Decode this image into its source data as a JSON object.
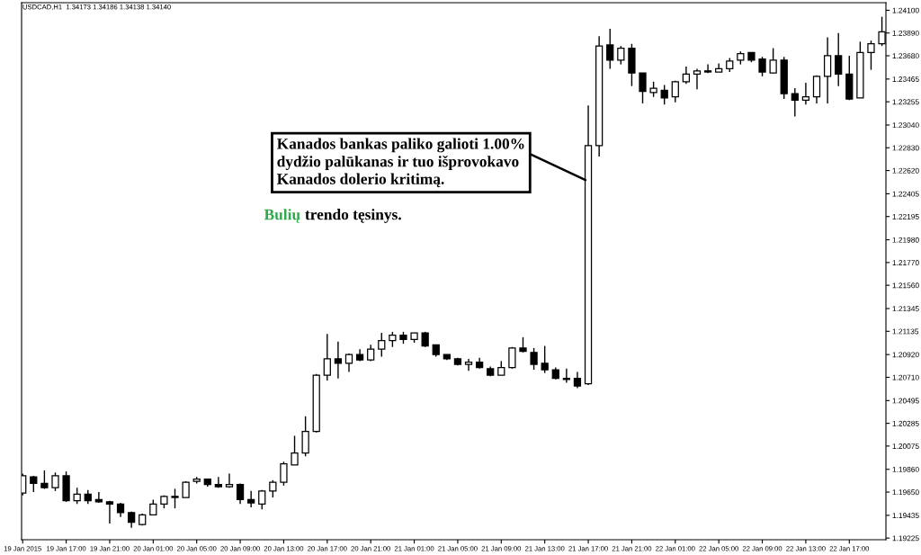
{
  "chart_data": {
    "type": "candlestick",
    "title": "USDCAD,H1  1.34173 1.34186 1.34138 1.34140",
    "color": "#000000",
    "x": [
      "2015-01-19T13:00",
      "2015-01-19T14:00",
      "2015-01-19T15:00",
      "2015-01-19T16:00",
      "2015-01-19T17:00",
      "2015-01-19T18:00",
      "2015-01-19T19:00",
      "2015-01-19T20:00",
      "2015-01-19T21:00",
      "2015-01-19T22:00",
      "2015-01-19T23:00",
      "2015-01-20T00:00",
      "2015-01-20T01:00",
      "2015-01-20T02:00",
      "2015-01-20T03:00",
      "2015-01-20T04:00",
      "2015-01-20T05:00",
      "2015-01-20T06:00",
      "2015-01-20T07:00",
      "2015-01-20T08:00",
      "2015-01-20T09:00",
      "2015-01-20T10:00",
      "2015-01-20T11:00",
      "2015-01-20T12:00",
      "2015-01-20T13:00",
      "2015-01-20T14:00",
      "2015-01-20T15:00",
      "2015-01-20T16:00",
      "2015-01-20T17:00",
      "2015-01-20T18:00",
      "2015-01-20T19:00",
      "2015-01-20T20:00",
      "2015-01-20T21:00",
      "2015-01-20T22:00",
      "2015-01-20T23:00",
      "2015-01-21T00:00",
      "2015-01-21T01:00",
      "2015-01-21T02:00",
      "2015-01-21T03:00",
      "2015-01-21T04:00",
      "2015-01-21T05:00",
      "2015-01-21T06:00",
      "2015-01-21T07:00",
      "2015-01-21T08:00",
      "2015-01-21T09:00",
      "2015-01-21T10:00",
      "2015-01-21T11:00",
      "2015-01-21T12:00",
      "2015-01-21T13:00",
      "2015-01-21T14:00",
      "2015-01-21T15:00",
      "2015-01-21T16:00",
      "2015-01-21T17:00",
      "2015-01-21T18:00",
      "2015-01-21T19:00",
      "2015-01-21T20:00",
      "2015-01-21T21:00",
      "2015-01-21T22:00",
      "2015-01-21T23:00",
      "2015-01-22T00:00",
      "2015-01-22T01:00",
      "2015-01-22T02:00",
      "2015-01-22T03:00",
      "2015-01-22T04:00",
      "2015-01-22T05:00",
      "2015-01-22T06:00",
      "2015-01-22T07:00",
      "2015-01-22T08:00",
      "2015-01-22T09:00",
      "2015-01-22T10:00",
      "2015-01-22T11:00",
      "2015-01-22T12:00",
      "2015-01-22T13:00",
      "2015-01-22T14:00",
      "2015-01-22T15:00",
      "2015-01-22T16:00",
      "2015-01-22T17:00",
      "2015-01-22T18:00",
      "2015-01-22T19:00",
      "2015-01-22T20:00"
    ],
    "ohlc": [
      [
        1.1964,
        1.1982,
        1.1962,
        1.198
      ],
      [
        1.1979,
        1.198,
        1.1965,
        1.1973
      ],
      [
        1.1973,
        1.1985,
        1.1968,
        1.1969
      ],
      [
        1.1969,
        1.1983,
        1.1966,
        1.198
      ],
      [
        1.198,
        1.1984,
        1.1956,
        1.1957
      ],
      [
        1.1957,
        1.1969,
        1.1954,
        1.1963
      ],
      [
        1.1963,
        1.1967,
        1.1954,
        1.1957
      ],
      [
        1.1958,
        1.1965,
        1.1955,
        1.1956
      ],
      [
        1.1956,
        1.1957,
        1.1936,
        1.1954
      ],
      [
        1.1954,
        1.1955,
        1.1942,
        1.1946
      ],
      [
        1.1946,
        1.1947,
        1.1932,
        1.1937
      ],
      [
        1.1935,
        1.1945,
        1.1934,
        1.1944
      ],
      [
        1.1944,
        1.1958,
        1.1944,
        1.1954
      ],
      [
        1.1954,
        1.1962,
        1.195,
        1.1961
      ],
      [
        1.1961,
        1.1968,
        1.195,
        1.196
      ],
      [
        1.196,
        1.1975,
        1.196,
        1.1974
      ],
      [
        1.1975,
        1.1979,
        1.1973,
        1.1977
      ],
      [
        1.1977,
        1.1977,
        1.197,
        1.1972
      ],
      [
        1.1972,
        1.1979,
        1.1969,
        1.197
      ],
      [
        1.197,
        1.1982,
        1.1969,
        1.1972
      ],
      [
        1.1972,
        1.1973,
        1.1954,
        1.1958
      ],
      [
        1.1958,
        1.1966,
        1.1951,
        1.1955
      ],
      [
        1.1954,
        1.1967,
        1.1949,
        1.1966
      ],
      [
        1.1966,
        1.1976,
        1.196,
        1.1974
      ],
      [
        1.1974,
        1.1993,
        1.1971,
        1.1991
      ],
      [
        1.199,
        1.2017,
        1.199,
        1.2001
      ],
      [
        1.2001,
        1.2035,
        1.1998,
        1.2021
      ],
      [
        1.2021,
        1.2074,
        1.202,
        1.2073
      ],
      [
        1.2073,
        1.2111,
        1.2068,
        1.2088
      ],
      [
        1.2088,
        1.2104,
        1.207,
        1.2084
      ],
      [
        1.2084,
        1.2093,
        1.2076,
        1.2092
      ],
      [
        1.2092,
        1.2097,
        1.2086,
        1.2087
      ],
      [
        1.2087,
        1.2101,
        1.2086,
        1.2097
      ],
      [
        1.2097,
        1.2112,
        1.209,
        1.2105
      ],
      [
        1.2105,
        1.2113,
        1.2099,
        1.211
      ],
      [
        1.211,
        1.2113,
        1.2102,
        1.2106
      ],
      [
        1.2106,
        1.2112,
        1.2103,
        1.2112
      ],
      [
        1.2112,
        1.2113,
        1.2099,
        1.21
      ],
      [
        1.2101,
        1.2101,
        1.209,
        1.2092
      ],
      [
        1.2092,
        1.2092,
        1.2087,
        1.2088
      ],
      [
        1.2088,
        1.2089,
        1.2082,
        1.2083
      ],
      [
        1.2083,
        1.2088,
        1.2077,
        1.2085
      ],
      [
        1.2085,
        1.2089,
        1.2079,
        1.208
      ],
      [
        1.2079,
        1.2081,
        1.2072,
        1.2073
      ],
      [
        1.2073,
        1.2086,
        1.2073,
        1.208
      ],
      [
        1.208,
        1.2099,
        1.2079,
        1.2098
      ],
      [
        1.2098,
        1.2108,
        1.2094,
        1.2095
      ],
      [
        1.2094,
        1.2098,
        1.2078,
        1.2083
      ],
      [
        1.2084,
        1.21,
        1.2075,
        1.2078
      ],
      [
        1.2078,
        1.208,
        1.2069,
        1.207
      ],
      [
        1.207,
        1.2079,
        1.2066,
        1.2069
      ],
      [
        1.207,
        1.2076,
        1.2061,
        1.2063
      ],
      [
        1.2065,
        1.2322,
        1.2064,
        1.2285
      ],
      [
        1.2285,
        1.2386,
        1.2275,
        1.2377
      ],
      [
        1.2378,
        1.2393,
        1.2356,
        1.2364
      ],
      [
        1.2364,
        1.2377,
        1.236,
        1.2375
      ],
      [
        1.2375,
        1.2379,
        1.234,
        1.2352
      ],
      [
        1.2352,
        1.2352,
        1.2324,
        1.2335
      ],
      [
        1.2334,
        1.2344,
        1.233,
        1.2338
      ],
      [
        1.2336,
        1.2341,
        1.2323,
        1.2329
      ],
      [
        1.233,
        1.2345,
        1.2325,
        1.2344
      ],
      [
        1.2344,
        1.2358,
        1.2342,
        1.2351
      ],
      [
        1.2351,
        1.2356,
        1.2337,
        1.2354
      ],
      [
        1.2354,
        1.236,
        1.2352,
        1.2353
      ],
      [
        1.2353,
        1.2361,
        1.2353,
        1.2356
      ],
      [
        1.2356,
        1.2366,
        1.2353,
        1.2363
      ],
      [
        1.2364,
        1.2372,
        1.236,
        1.237
      ],
      [
        1.2371,
        1.2371,
        1.2362,
        1.2364
      ],
      [
        1.2365,
        1.2367,
        1.2349,
        1.2353
      ],
      [
        1.2352,
        1.2375,
        1.2352,
        1.2364
      ],
      [
        1.2364,
        1.2367,
        1.2328,
        1.2333
      ],
      [
        1.2333,
        1.2338,
        1.2312,
        1.2327
      ],
      [
        1.2327,
        1.2343,
        1.2323,
        1.233
      ],
      [
        1.233,
        1.235,
        1.2324,
        1.2349
      ],
      [
        1.2349,
        1.2385,
        1.2324,
        1.2368
      ],
      [
        1.2368,
        1.2389,
        1.234,
        1.2351
      ],
      [
        1.2351,
        1.2368,
        1.2327,
        1.2328
      ],
      [
        1.2329,
        1.2381,
        1.2329,
        1.2371
      ],
      [
        1.2371,
        1.2382,
        1.2355,
        1.2379
      ],
      [
        1.2379,
        1.2404,
        1.2377,
        1.239
      ]
    ],
    "xlim": [
      "2015-01-19T12:54",
      "2015-01-22T20:22"
    ],
    "xticks": [
      {
        "value": "2015-01-19T13:00",
        "label": "19 Jan 2015"
      },
      {
        "value": "2015-01-19T17:00",
        "label": "19 Jan 17:00"
      },
      {
        "value": "2015-01-19T21:00",
        "label": "19 Jan 21:00"
      },
      {
        "value": "2015-01-20T01:00",
        "label": "20 Jan 01:00"
      },
      {
        "value": "2015-01-20T05:00",
        "label": "20 Jan 05:00"
      },
      {
        "value": "2015-01-20T09:00",
        "label": "20 Jan 09:00"
      },
      {
        "value": "2015-01-20T13:00",
        "label": "20 Jan 13:00"
      },
      {
        "value": "2015-01-20T17:00",
        "label": "20 Jan 17:00"
      },
      {
        "value": "2015-01-20T21:00",
        "label": "20 Jan 21:00"
      },
      {
        "value": "2015-01-21T01:00",
        "label": "21 Jan 01:00"
      },
      {
        "value": "2015-01-21T05:00",
        "label": "21 Jan 05:00"
      },
      {
        "value": "2015-01-21T09:00",
        "label": "21 Jan 09:00"
      },
      {
        "value": "2015-01-21T13:00",
        "label": "21 Jan 13:00"
      },
      {
        "value": "2015-01-21T17:00",
        "label": "21 Jan 17:00"
      },
      {
        "value": "2015-01-21T21:00",
        "label": "21 Jan 21:00"
      },
      {
        "value": "2015-01-22T01:00",
        "label": "22 Jan 01:00"
      },
      {
        "value": "2015-01-22T05:00",
        "label": "22 Jan 05:00"
      },
      {
        "value": "2015-01-22T09:00",
        "label": "22 Jan 09:00"
      },
      {
        "value": "2015-01-22T13:00",
        "label": "22 Jan 13:00"
      },
      {
        "value": "2015-01-22T17:00",
        "label": "22 Jan 17:00"
      }
    ],
    "ylim": [
      1.1921,
      1.2417
    ],
    "yticks": [
      {
        "value": 1.241,
        "label": "1.24100"
      },
      {
        "value": 1.2389,
        "label": "1.23890"
      },
      {
        "value": 1.2368,
        "label": "1.23680"
      },
      {
        "value": 1.23465,
        "label": "1.23465"
      },
      {
        "value": 1.23255,
        "label": "1.23255"
      },
      {
        "value": 1.2304,
        "label": "1.23040"
      },
      {
        "value": 1.2283,
        "label": "1.22830"
      },
      {
        "value": 1.2262,
        "label": "1.22620"
      },
      {
        "value": 1.22405,
        "label": "1.22405"
      },
      {
        "value": 1.22195,
        "label": "1.22195"
      },
      {
        "value": 1.2198,
        "label": "1.21980"
      },
      {
        "value": 1.2177,
        "label": "1.21770"
      },
      {
        "value": 1.2156,
        "label": "1.21560"
      },
      {
        "value": 1.21345,
        "label": "1.21345"
      },
      {
        "value": 1.21135,
        "label": "1.21135"
      },
      {
        "value": 1.2092,
        "label": "1.20920"
      },
      {
        "value": 1.2071,
        "label": "1.20710"
      },
      {
        "value": 1.20495,
        "label": "1.20495"
      },
      {
        "value": 1.20285,
        "label": "1.20285"
      },
      {
        "value": 1.20075,
        "label": "1.20075"
      },
      {
        "value": 1.1986,
        "label": "1.19860"
      },
      {
        "value": 1.1965,
        "label": "1.19650"
      },
      {
        "value": 1.19435,
        "label": "1.19435"
      },
      {
        "value": 1.19225,
        "label": "1.19225"
      }
    ],
    "annotations": [
      {
        "text": "Kanados bankas paliko galioti 1.00%\ndydžio palūkanas ir tuo išprovokavo\nKanados dolerio kritimą.",
        "x": "2015-01-21T17:00",
        "y": 1.2252
      },
      "Bulių trendo tęsinys."
    ]
  }
}
